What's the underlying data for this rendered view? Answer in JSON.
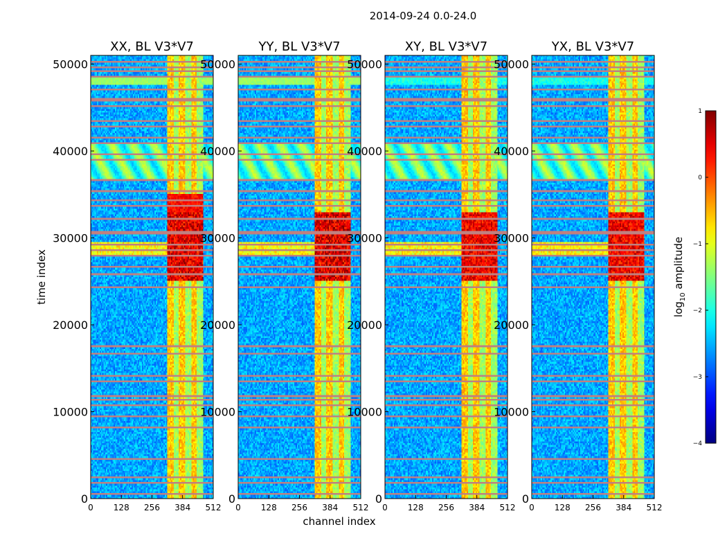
{
  "chart_data": {
    "type": "heatmap",
    "title": "2014-09-24 0.0-24.0",
    "xlabel": "channel index",
    "ylabel": "time index",
    "xlim": [
      0,
      512
    ],
    "ylim": [
      0,
      51000
    ],
    "xticks": [
      0,
      128,
      256,
      384,
      512
    ],
    "yticks": [
      0,
      10000,
      20000,
      30000,
      40000,
      50000
    ],
    "panels": [
      {
        "name": "XX",
        "title": "XX, BL V3*V7",
        "color_scale": 1.0
      },
      {
        "name": "YY",
        "title": "YY, BL V3*V7",
        "color_scale": 1.05
      },
      {
        "name": "XY",
        "title": "XY, BL V3*V7",
        "color_scale": 0.85
      },
      {
        "name": "YX",
        "title": "YX, BL V3*V7",
        "color_scale": 0.85
      }
    ],
    "colorbar": {
      "label_main": "log",
      "label_sub": "10",
      "label_tail": " amplitude",
      "range": [
        -4,
        1
      ],
      "ticks": [
        1,
        0,
        -1,
        -2,
        -3,
        -4
      ],
      "tick_labels": [
        "1",
        "0",
        "−1",
        "−2",
        "−3",
        "−4"
      ]
    },
    "features": {
      "bright_channel_band": [
        320,
        470
      ],
      "strong_emission_rows": [
        25000,
        33000
      ],
      "flagged_rows": [
        600,
        1900,
        2500,
        4500,
        8200,
        9500,
        10800,
        11400,
        11800,
        13500,
        14200,
        16600,
        17500,
        24300,
        25800,
        26700,
        28000,
        28600,
        29300,
        30600,
        32100,
        33600,
        34400,
        35300,
        36700,
        38900,
        39600,
        41000,
        41600,
        42800,
        43500,
        45100,
        45900,
        47000,
        48600,
        49200,
        49700,
        50300
      ],
      "saturated_rows": [
        [
          47500,
          48400
        ]
      ],
      "fringe_rows": [
        [
          36500,
          41000
        ]
      ]
    }
  }
}
